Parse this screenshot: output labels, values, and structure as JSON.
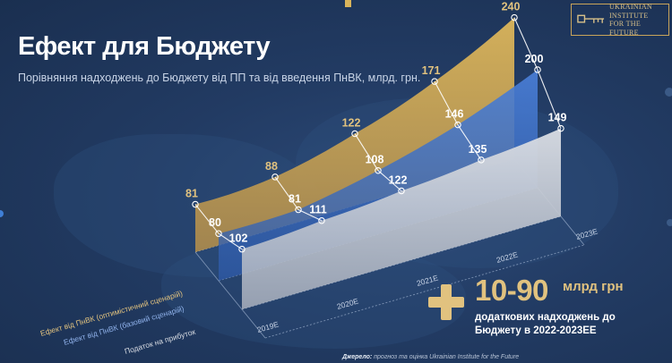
{
  "header": {
    "title": "Ефект для Бюджету",
    "subtitle": "Порівняння надходжень до Бюджету від ПП та від введення ПнВК, млрд. грн."
  },
  "logo": {
    "icon": "key-icon",
    "line1": "Ukrainian",
    "line2": "Institute",
    "line3": "for the Future"
  },
  "chart_data": {
    "type": "area",
    "title": "Ефект для Бюджету",
    "subtitle": "Порівняння надходжень до Бюджету від ПП та від введення ПнВК, млрд. грн.",
    "x": [
      "2019E",
      "2020E",
      "2021E",
      "2022E",
      "2023E"
    ],
    "series": [
      {
        "name": "Ефект від ПнВК (оптимістичний сценарій)",
        "color": "#d9b45b",
        "values": [
          81,
          88,
          122,
          171,
          240
        ]
      },
      {
        "name": "Ефект від ПнВК (базовий сценарій)",
        "color": "#3d6dc4",
        "values": [
          80,
          81,
          108,
          146,
          200
        ]
      },
      {
        "name": "Податок на прибуток",
        "color": "#c3c9d3",
        "values": [
          102,
          111,
          122,
          135,
          149
        ]
      }
    ],
    "legend": "left-diagonal",
    "grid": false
  },
  "callout": {
    "value": "10-90",
    "unit": "млрд грн",
    "description": "додаткових надходжень до Бюджету в 2022-2023ЕЕ"
  },
  "source": {
    "label": "Джерело:",
    "text": " прогноз та оцінка Ukrainian Institute for the Future"
  },
  "colors": {
    "accent_gold": "#e1c27f",
    "background": "#223b63"
  }
}
